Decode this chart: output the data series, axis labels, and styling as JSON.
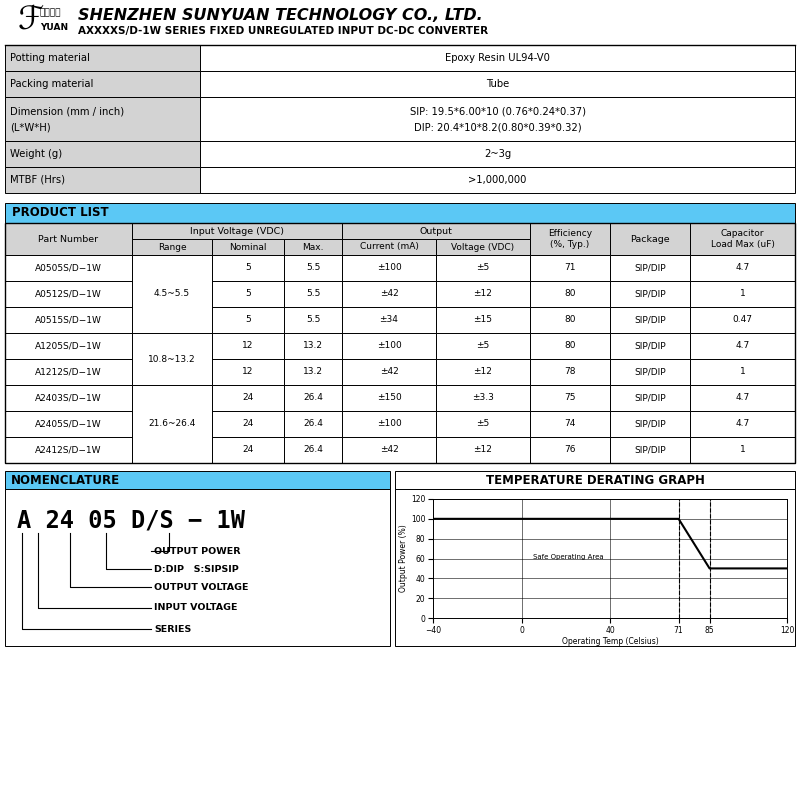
{
  "title_company": "SHENZHEN SUNYUAN TECHNOLOGY CO., LTD.",
  "title_series": "AXXXXS/D-1W SERIES FIXED UNREGULATED INPUT DC-DC CONVERTER",
  "table1_rows": [
    [
      "Potting material",
      "Epoxy Resin UL94-V0"
    ],
    [
      "Packing material",
      "Tube"
    ],
    [
      "Dimension (mm / inch)\n(L*W*H)",
      "SIP: 19.5*6.00*10 (0.76*0.24*0.37)\nDIP: 20.4*10*8.2(0.80*0.39*0.32)"
    ],
    [
      "Weight (g)",
      "2~3g"
    ],
    [
      "MTBF (Hrs)",
      ">1,000,000"
    ]
  ],
  "product_list_title": "PRODUCT LIST",
  "product_rows": [
    [
      "A0505S/D−1W",
      "",
      "5",
      "5.5",
      "±100",
      "±5",
      "71",
      "SIP/DIP",
      "4.7"
    ],
    [
      "A0512S/D−1W",
      "4.5~5.5",
      "5",
      "5.5",
      "±42",
      "±12",
      "80",
      "SIP/DIP",
      "1"
    ],
    [
      "A0515S/D−1W",
      "",
      "5",
      "5.5",
      "±34",
      "±15",
      "80",
      "SIP/DIP",
      "0.47"
    ],
    [
      "A1205S/D−1W",
      "",
      "12",
      "13.2",
      "±100",
      "±5",
      "80",
      "SIP/DIP",
      "4.7"
    ],
    [
      "A1212S/D−1W",
      "10.8~13.2",
      "12",
      "13.2",
      "±42",
      "±12",
      "78",
      "SIP/DIP",
      "1"
    ],
    [
      "A2403S/D−1W",
      "",
      "24",
      "26.4",
      "±150",
      "±3.3",
      "75",
      "SIP/DIP",
      "4.7"
    ],
    [
      "A2405S/D−1W",
      "21.6~26.4",
      "24",
      "26.4",
      "±100",
      "±5",
      "74",
      "SIP/DIP",
      "4.7"
    ],
    [
      "A2412S/D−1W",
      "",
      "24",
      "26.4",
      "±42",
      "±12",
      "76",
      "SIP/DIP",
      "1"
    ]
  ],
  "range_spans": [
    {
      "range": "4.5~5.5",
      "rows": [
        0,
        1,
        2
      ]
    },
    {
      "range": "10.8~13.2",
      "rows": [
        3,
        4
      ]
    },
    {
      "range": "21.6~26.4",
      "rows": [
        5,
        6,
        7
      ]
    }
  ],
  "nomenclature_title": "NOMENCLATURE",
  "nomenclature_code": "A 24 05 D/S − 1W",
  "nomenclature_labels": [
    "OUTPUT POWER",
    "D:DIP   S:SIPSIP",
    "OUTPUT VOLTAGE",
    "INPUT VOLTAGE",
    "SERIES"
  ],
  "temp_graph_title": "TEMPERATURE DERATING GRAPH",
  "header_blue": "#5BC8F5",
  "row_bg_light": "#D3D3D3",
  "row_bg_white": "#FFFFFF",
  "border_color": "#000000"
}
